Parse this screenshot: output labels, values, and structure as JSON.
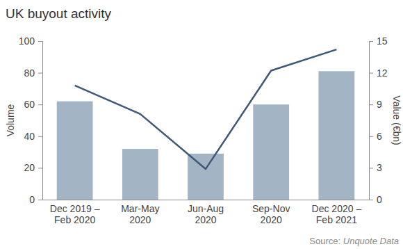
{
  "chart_data": {
    "type": "bar",
    "title": "UK buyout activity",
    "categories": [
      "Dec 2019 –\nFeb 2020",
      "Mar-May\n2020",
      "Jun-Aug\n2020",
      "Sep-Nov\n2020",
      "Dec 2020 –\nFeb 2021"
    ],
    "series": [
      {
        "type": "bar",
        "color": "#a3b4c4",
        "values": [
          62,
          32,
          29,
          60,
          81
        ]
      },
      {
        "type": "line",
        "axis": "y2",
        "color": "#3f5877",
        "values": [
          10.8,
          8.1,
          2.9,
          12.2,
          14.2
        ]
      }
    ],
    "ylabel": "Volume",
    "y2label": "Value (€bn)",
    "ylim": [
      0,
      100
    ],
    "yticks": [
      0,
      20,
      40,
      60,
      80,
      100
    ],
    "y2lim": [
      0,
      15
    ],
    "y2ticks": [
      0,
      3,
      6,
      9,
      12,
      15
    ],
    "grid": false,
    "source": "Source: Unquote Data"
  }
}
